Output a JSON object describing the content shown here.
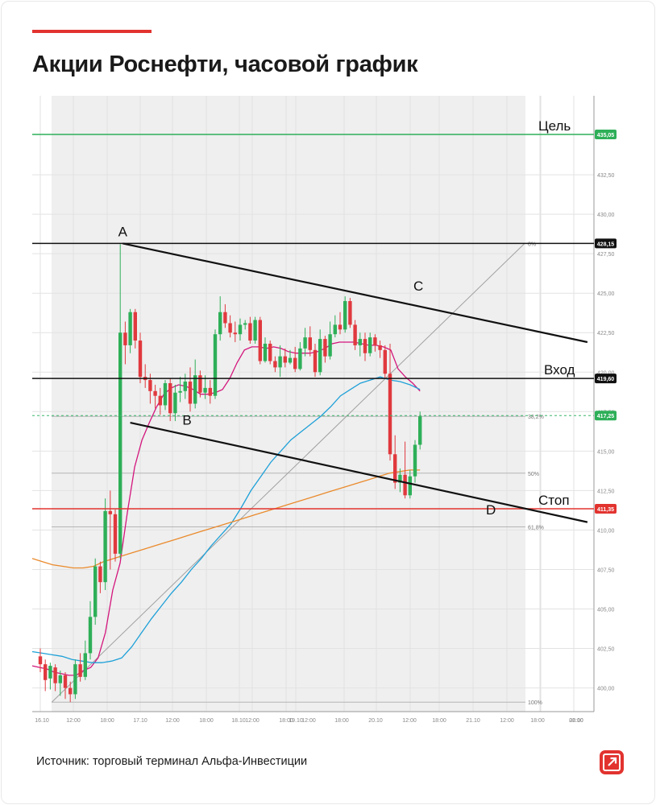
{
  "title": "Акции Роснефти, часовой график",
  "source": "Источник: торговый терминал Альфа-Инвестиции",
  "colors": {
    "accent": "#e2332f",
    "up": "#2eaf58",
    "down": "#e0393e",
    "target_line": "#2eaf58",
    "stop_line": "#e2332f",
    "ma_fast": "#d3157c",
    "ma_mid": "#1ea0d8",
    "ma_slow": "#ea8a2c"
  },
  "chart_data": {
    "type": "line",
    "ylim": [
      398.5,
      437.5
    ],
    "y_ticks": [
      "400,00",
      "402,50",
      "405,00",
      "407,50",
      "410,00",
      "412,50",
      "415,00",
      "417,50",
      "420,00",
      "422,50",
      "425,00",
      "427,50",
      "430,00",
      "432,50"
    ],
    "x_ticks": [
      "16.10",
      "12:00",
      "18:00",
      "17.10",
      "12:00",
      "18:00",
      "18.10",
      "12:00",
      "18:00",
      "19.10",
      "12:00",
      "18:00",
      "20.10",
      "12:00",
      "18:00",
      "21.10",
      "12:00",
      "18:00",
      "22.10",
      "06:00"
    ],
    "levels": [
      {
        "label": "Цель",
        "value": 435.05,
        "badge": "435,05",
        "role": "target"
      },
      {
        "label": "",
        "value": 428.15,
        "badge": "428,15",
        "role": "resistance"
      },
      {
        "label": "Вход",
        "value": 419.6,
        "badge": "419,60",
        "role": "entry"
      },
      {
        "label": "Стоп",
        "value": 411.35,
        "badge": "411,35",
        "role": "stop"
      }
    ],
    "last_price": {
      "value": 417.25,
      "badge": "417,25"
    },
    "fib_levels": [
      {
        "label": "0%",
        "value": 428.15
      },
      {
        "label": "38,2%",
        "value": 417.2
      },
      {
        "label": "50%",
        "value": 413.6
      },
      {
        "label": "61,8%",
        "value": 410.2
      },
      {
        "label": "100%",
        "value": 399.1
      }
    ],
    "points": [
      {
        "label": "A",
        "x": 16.5,
        "y": 428.15
      },
      {
        "label": "B",
        "x": 30,
        "y": 417.8
      },
      {
        "label": "C",
        "x": 75.5,
        "y": 424.7
      },
      {
        "label": "D",
        "x": 90.5,
        "y": 412.0
      }
    ],
    "trend_lines": [
      {
        "name": "upper",
        "from": {
          "x": 16.5,
          "y": 428.15
        },
        "to": {
          "x": 109.5,
          "y": 421.9
        }
      },
      {
        "name": "lower",
        "from": {
          "x": 18,
          "y": 416.8
        },
        "to": {
          "x": 109.5,
          "y": 410.5
        }
      }
    ],
    "candles": [
      [
        402.0,
        401.5,
        402.5,
        401.0
      ],
      [
        401.5,
        400.5,
        401.8,
        399.8
      ],
      [
        400.6,
        401.4,
        401.6,
        399.9
      ],
      [
        401.3,
        400.3,
        401.5,
        399.8
      ],
      [
        400.3,
        400.8,
        401.1,
        399.5
      ],
      [
        400.8,
        400.0,
        401.0,
        399.3
      ],
      [
        400.0,
        399.6,
        400.4,
        399.1
      ],
      [
        399.6,
        401.5,
        401.8,
        399.3
      ],
      [
        401.5,
        400.7,
        402.2,
        400.4
      ],
      [
        400.7,
        402.2,
        403.0,
        400.5
      ],
      [
        402.2,
        404.5,
        405.5,
        401.8
      ],
      [
        404.5,
        407.7,
        408.2,
        404.0
      ],
      [
        407.7,
        406.7,
        408.0,
        406.0
      ],
      [
        406.7,
        411.2,
        412.0,
        406.2
      ],
      [
        411.2,
        411.0,
        412.5,
        407.5
      ],
      [
        411.0,
        408.5,
        411.3,
        408.0
      ],
      [
        408.5,
        422.5,
        428.1,
        408.2
      ],
      [
        422.5,
        421.7,
        423.2,
        420.5
      ],
      [
        421.7,
        423.8,
        424.0,
        421.2
      ],
      [
        423.8,
        422.0,
        424.0,
        421.5
      ],
      [
        422.0,
        419.7,
        422.5,
        419.3
      ],
      [
        419.7,
        419.5,
        420.5,
        419.0
      ],
      [
        419.5,
        418.8,
        419.9,
        418.0
      ],
      [
        418.8,
        418.5,
        419.2,
        417.7
      ],
      [
        418.5,
        417.9,
        419.0,
        417.3
      ],
      [
        417.9,
        419.3,
        419.5,
        417.6
      ],
      [
        419.3,
        417.4,
        419.6,
        416.9
      ],
      [
        417.4,
        418.7,
        419.2,
        416.9
      ],
      [
        418.7,
        418.8,
        419.7,
        418.1
      ],
      [
        418.8,
        419.4,
        419.9,
        418.3
      ],
      [
        419.4,
        418.0,
        420.3,
        417.5
      ],
      [
        418.0,
        419.8,
        420.8,
        417.7
      ],
      [
        419.8,
        418.7,
        420.1,
        418.4
      ],
      [
        418.7,
        419.0,
        419.8,
        418.3
      ],
      [
        419.0,
        418.5,
        419.5,
        418.0
      ],
      [
        418.5,
        422.4,
        422.7,
        418.3
      ],
      [
        422.4,
        423.8,
        424.8,
        422.0
      ],
      [
        423.8,
        423.1,
        424.3,
        422.8
      ],
      [
        423.1,
        422.5,
        423.6,
        422.2
      ],
      [
        422.5,
        422.4,
        423.2,
        421.9
      ],
      [
        422.4,
        423.0,
        423.4,
        422.0
      ],
      [
        423.0,
        423.1,
        423.3,
        422.7
      ],
      [
        423.1,
        422.0,
        423.5,
        421.8
      ],
      [
        422.0,
        423.3,
        423.5,
        421.8
      ],
      [
        423.3,
        420.7,
        423.5,
        420.5
      ],
      [
        420.7,
        421.8,
        422.2,
        420.6
      ],
      [
        421.8,
        420.7,
        422.0,
        420.5
      ],
      [
        420.7,
        420.3,
        421.0,
        420.0
      ],
      [
        420.3,
        421.0,
        421.7,
        419.7
      ],
      [
        421.0,
        420.6,
        421.5,
        420.3
      ],
      [
        420.6,
        420.9,
        421.4,
        420.5
      ],
      [
        420.9,
        420.2,
        421.6,
        420.0
      ],
      [
        420.2,
        421.5,
        421.9,
        420.1
      ],
      [
        421.5,
        422.2,
        422.8,
        421.0
      ],
      [
        422.2,
        421.4,
        422.9,
        421.0
      ],
      [
        421.4,
        420.0,
        421.8,
        419.7
      ],
      [
        420.0,
        422.1,
        422.7,
        419.8
      ],
      [
        422.1,
        421.0,
        422.3,
        420.6
      ],
      [
        421.0,
        422.4,
        423.2,
        420.8
      ],
      [
        422.4,
        423.0,
        423.6,
        422.2
      ],
      [
        423.0,
        422.7,
        423.8,
        422.4
      ],
      [
        422.7,
        424.5,
        424.8,
        422.5
      ],
      [
        424.5,
        423.0,
        424.7,
        422.8
      ],
      [
        423.0,
        421.7,
        423.3,
        421.4
      ],
      [
        421.7,
        422.1,
        422.5,
        421.0
      ],
      [
        422.1,
        421.2,
        422.5,
        420.7
      ],
      [
        421.2,
        422.2,
        422.5,
        421.0
      ],
      [
        422.2,
        421.7,
        422.4,
        421.3
      ],
      [
        421.7,
        421.4,
        422.0,
        420.9
      ],
      [
        421.4,
        419.9,
        421.7,
        419.6
      ],
      [
        419.9,
        414.8,
        421.8,
        414.4
      ],
      [
        414.8,
        413.0,
        416.0,
        412.6
      ],
      [
        413.0,
        413.5,
        413.9,
        412.4
      ],
      [
        413.5,
        412.2,
        415.6,
        412.0
      ],
      [
        412.2,
        413.4,
        413.8,
        412.0
      ],
      [
        413.4,
        415.4,
        415.7,
        413.0
      ],
      [
        415.4,
        417.2,
        417.5,
        415.1
      ]
    ],
    "series": [
      {
        "values": [
          401.4,
          401.3,
          401.2,
          401.0,
          400.9,
          400.8,
          400.8,
          401.1,
          401.3,
          401.9,
          403.5,
          406.2,
          407.9,
          411.1,
          414.0,
          415.7,
          416.8,
          417.8,
          418.6,
          419.0,
          419.2,
          419.1,
          418.9,
          418.6,
          418.6,
          418.7,
          418.9,
          419.6,
          420.6,
          421.4,
          421.6,
          421.6,
          421.5,
          421.6,
          421.5,
          421.3,
          421.2,
          421.2,
          421.2,
          421.3,
          421.5,
          421.8,
          421.9,
          421.9,
          421.9,
          421.8,
          421.7,
          421.7,
          421.6,
          421.4,
          420.2,
          419.7,
          419.3,
          418.8
        ]
      },
      {
        "values": [
          402.3,
          402.2,
          402.1,
          402.0,
          401.8,
          401.7,
          401.6,
          401.6,
          401.7,
          401.9,
          402.6,
          403.5,
          404.4,
          405.2,
          406.0,
          406.7,
          407.5,
          408.2,
          409.0,
          409.7,
          410.4,
          411.4,
          412.5,
          413.4,
          414.3,
          415.0,
          415.7,
          416.2,
          416.7,
          417.2,
          417.8,
          418.5,
          418.9,
          419.3,
          419.5,
          419.7,
          419.5,
          419.4,
          419.2,
          418.9
        ]
      },
      {
        "values": [
          408.2,
          408.0,
          407.8,
          407.7,
          407.6,
          407.6,
          407.7,
          408.0,
          408.2,
          408.4,
          408.6,
          408.8,
          409.0,
          409.2,
          409.4,
          409.6,
          409.8,
          410.0,
          410.2,
          410.4,
          410.6,
          410.8,
          411.0,
          411.2,
          411.4,
          411.6,
          411.8,
          412.0,
          412.2,
          412.4,
          412.6,
          412.8,
          413.0,
          413.2,
          413.4,
          413.6,
          413.7,
          413.8,
          413.8
        ]
      }
    ]
  }
}
